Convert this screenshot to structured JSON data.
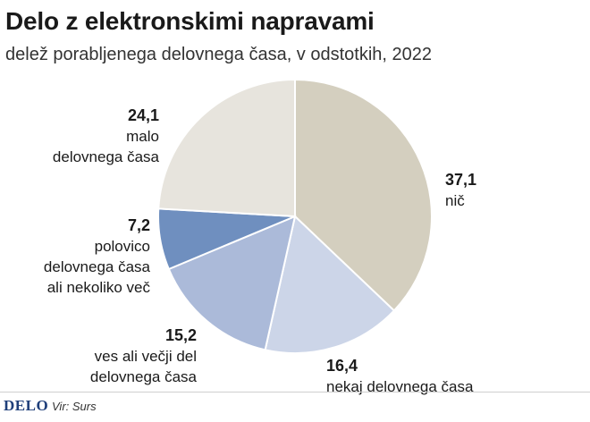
{
  "chart_data": {
    "type": "pie",
    "title": "Delo z elektronskimi napravami",
    "subtitle": "delež porabljenega delovnega časa, v odstotkih, 2022",
    "slices": [
      {
        "label": "nič",
        "value": 37.1,
        "value_text": "37,1",
        "color": "#d4cfbf"
      },
      {
        "label": "nekaj delovnega časa",
        "value": 16.4,
        "value_text": "16,4",
        "color": "#ccd5e8"
      },
      {
        "label": "ves ali večji del\ndelovnega časa",
        "value": 15.2,
        "value_text": "15,2",
        "color": "#abbad9"
      },
      {
        "label": "polovico\ndelovnega časa\nali nekoliko več",
        "value": 7.2,
        "value_text": "7,2",
        "color": "#6f8fbf"
      },
      {
        "label": "malo\ndelovnega časa",
        "value": 24.1,
        "value_text": "24,1",
        "color": "#e7e4dd"
      }
    ],
    "start": "12 o'clock",
    "direction": "clockwise"
  },
  "footer": {
    "brand": "DELO",
    "source": "Vir: Surs"
  }
}
